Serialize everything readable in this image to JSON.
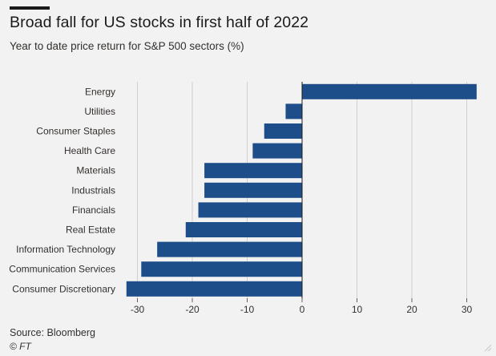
{
  "header": {
    "title": "Broad fall for US stocks in first half of 2022",
    "subtitle": "Year to date price return for S&P 500 sectors (%)"
  },
  "footer": {
    "source": "Source: Bloomberg",
    "copyright": "© FT"
  },
  "colors": {
    "background": "#f2f2f2",
    "bar": "#1d4e89",
    "gridline": "#cfcfcf",
    "text": "#33302e"
  },
  "chart_data": {
    "type": "bar",
    "orientation": "horizontal",
    "categories": [
      "Energy",
      "Utilities",
      "Consumer Staples",
      "Health Care",
      "Materials",
      "Industrials",
      "Financials",
      "Real Estate",
      "Information Technology",
      "Communication Services",
      "Consumer Discretionary"
    ],
    "values": [
      31.8,
      -3.0,
      -6.9,
      -9.0,
      -17.8,
      -17.8,
      -18.9,
      -21.2,
      -26.4,
      -29.3,
      -32.0
    ],
    "xlim": [
      -32,
      32
    ],
    "xticks": [
      -30,
      -20,
      -10,
      0,
      10,
      20,
      30
    ],
    "xtick_labels": [
      "-30",
      "-20",
      "-10",
      "0",
      "10",
      "20",
      "30"
    ],
    "grid": "vertical",
    "title": "Broad fall for US stocks in first half of 2022",
    "subtitle": "Year to date price return for S&P 500 sectors (%)",
    "xlabel": "",
    "ylabel": ""
  }
}
